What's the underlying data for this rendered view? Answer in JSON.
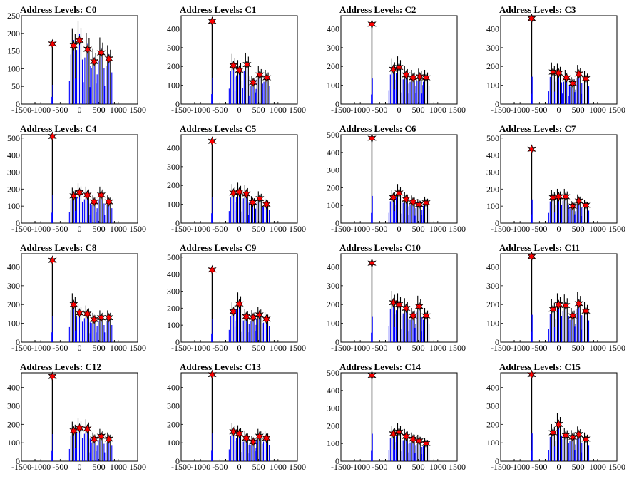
{
  "figure": {
    "colors": {
      "bar": "#0000ff",
      "raw": "#000000",
      "marker": "#ff0000",
      "marker_edge": "#000000"
    }
  },
  "chart_data": [
    {
      "title": "Address Levels: C0",
      "type": "bar",
      "xlim": [
        -1500,
        1500
      ],
      "ylim": [
        0,
        250
      ],
      "xticks": [
        -1500,
        -1000,
        -500,
        0,
        500,
        1000,
        1500
      ],
      "yticks": [
        0,
        50,
        100,
        150,
        200,
        250
      ],
      "centers": [
        -700,
        -150,
        0,
        210,
        380,
        560,
        760
      ],
      "peaks": [
        170,
        165,
        180,
        155,
        120,
        145,
        128
      ]
    },
    {
      "title": "Address Levels: C1",
      "type": "bar",
      "xlim": [
        -1500,
        1500
      ],
      "ylim": [
        0,
        470
      ],
      "xticks": [
        -1500,
        -1000,
        -500,
        0,
        500,
        1000,
        1500
      ],
      "yticks": [
        0,
        100,
        200,
        300,
        400
      ],
      "centers": [
        -700,
        -150,
        0,
        200,
        360,
        530,
        710
      ],
      "peaks": [
        440,
        205,
        180,
        210,
        115,
        155,
        140
      ]
    },
    {
      "title": "Address Levels: C2",
      "type": "bar",
      "xlim": [
        -1500,
        1500
      ],
      "ylim": [
        0,
        470
      ],
      "xticks": [
        -1500,
        -1000,
        -500,
        0,
        500,
        1000,
        1500
      ],
      "yticks": [
        0,
        100,
        200,
        300,
        400
      ],
      "centers": [
        -700,
        -150,
        0,
        180,
        360,
        540,
        700
      ],
      "peaks": [
        425,
        185,
        195,
        155,
        140,
        145,
        140
      ]
    },
    {
      "title": "Address Levels: C3",
      "type": "bar",
      "xlim": [
        -1500,
        1500
      ],
      "ylim": [
        0,
        470
      ],
      "xticks": [
        -1500,
        -1000,
        -500,
        0,
        500,
        1000,
        1500
      ],
      "yticks": [
        0,
        100,
        200,
        300,
        400
      ],
      "centers": [
        -700,
        -150,
        0,
        200,
        360,
        520,
        700
      ],
      "peaks": [
        455,
        170,
        165,
        140,
        110,
        160,
        135
      ]
    },
    {
      "title": "Address Levels: C4",
      "type": "bar",
      "xlim": [
        -1500,
        1500
      ],
      "ylim": [
        0,
        520
      ],
      "xticks": [
        -1500,
        -1000,
        -500,
        0,
        500,
        1000,
        1500
      ],
      "yticks": [
        0,
        100,
        200,
        300,
        400,
        500
      ],
      "centers": [
        -700,
        -150,
        0,
        200,
        380,
        560,
        760
      ],
      "peaks": [
        510,
        160,
        180,
        165,
        125,
        165,
        125
      ]
    },
    {
      "title": "Address Levels: C5",
      "type": "bar",
      "xlim": [
        -1500,
        1500
      ],
      "ylim": [
        0,
        470
      ],
      "xticks": [
        -1500,
        -1000,
        -500,
        0,
        500,
        1000,
        1500
      ],
      "yticks": [
        0,
        100,
        200,
        300,
        400
      ],
      "centers": [
        -700,
        -150,
        0,
        180,
        350,
        530,
        700
      ],
      "peaks": [
        435,
        160,
        165,
        155,
        110,
        130,
        100
      ]
    },
    {
      "title": "Address Levels: C6",
      "type": "bar",
      "xlim": [
        -1500,
        1500
      ],
      "ylim": [
        0,
        500
      ],
      "xticks": [
        -1500,
        -1000,
        -500,
        0,
        500,
        1000,
        1500
      ],
      "yticks": [
        0,
        100,
        200,
        300,
        400,
        500
      ],
      "centers": [
        -700,
        -150,
        0,
        180,
        360,
        520,
        700
      ],
      "peaks": [
        480,
        145,
        170,
        135,
        120,
        105,
        115
      ]
    },
    {
      "title": "Address Levels: C7",
      "type": "bar",
      "xlim": [
        -1500,
        1500
      ],
      "ylim": [
        0,
        520
      ],
      "xticks": [
        -1500,
        -1000,
        -500,
        0,
        500,
        1000,
        1500
      ],
      "yticks": [
        0,
        100,
        200,
        300,
        400,
        500
      ],
      "centers": [
        -700,
        -150,
        0,
        180,
        360,
        520,
        700
      ],
      "peaks": [
        435,
        150,
        155,
        155,
        100,
        130,
        105
      ]
    },
    {
      "title": "Address Levels: C8",
      "type": "bar",
      "xlim": [
        -1500,
        1500
      ],
      "ylim": [
        0,
        470
      ],
      "xticks": [
        -1500,
        -1000,
        -500,
        0,
        500,
        1000,
        1500
      ],
      "yticks": [
        0,
        100,
        200,
        300,
        400
      ],
      "centers": [
        -700,
        -150,
        0,
        200,
        380,
        560,
        760
      ],
      "peaks": [
        435,
        200,
        155,
        150,
        120,
        130,
        130
      ]
    },
    {
      "title": "Address Levels: C9",
      "type": "bar",
      "xlim": [
        -1500,
        1500
      ],
      "ylim": [
        0,
        520
      ],
      "xticks": [
        -1500,
        -1000,
        -500,
        0,
        500,
        1000,
        1500
      ],
      "yticks": [
        0,
        100,
        200,
        300,
        400,
        500
      ],
      "centers": [
        -700,
        -150,
        0,
        180,
        360,
        520,
        700
      ],
      "peaks": [
        425,
        180,
        225,
        150,
        145,
        160,
        135
      ]
    },
    {
      "title": "Address Levels: C10",
      "type": "bar",
      "xlim": [
        -1500,
        1500
      ],
      "ylim": [
        0,
        470
      ],
      "xticks": [
        -1500,
        -1000,
        -500,
        0,
        500,
        1000,
        1500
      ],
      "yticks": [
        0,
        100,
        200,
        300,
        400
      ],
      "centers": [
        -700,
        -150,
        0,
        180,
        360,
        520,
        700
      ],
      "peaks": [
        420,
        210,
        200,
        180,
        140,
        190,
        140
      ]
    },
    {
      "title": "Address Levels: C11",
      "type": "bar",
      "xlim": [
        -1500,
        1500
      ],
      "ylim": [
        0,
        470
      ],
      "xticks": [
        -1500,
        -1000,
        -500,
        0,
        500,
        1000,
        1500
      ],
      "yticks": [
        0,
        100,
        200,
        300,
        400
      ],
      "centers": [
        -700,
        -150,
        0,
        180,
        360,
        520,
        700
      ],
      "peaks": [
        455,
        175,
        200,
        195,
        140,
        205,
        165
      ]
    },
    {
      "title": "Address Levels: C12",
      "type": "bar",
      "xlim": [
        -1500,
        1500
      ],
      "ylim": [
        0,
        480
      ],
      "xticks": [
        -1500,
        -1000,
        -500,
        0,
        500,
        1000,
        1500
      ],
      "yticks": [
        0,
        100,
        200,
        300,
        400
      ],
      "centers": [
        -700,
        -150,
        0,
        200,
        380,
        560,
        760
      ],
      "peaks": [
        460,
        165,
        180,
        175,
        120,
        135,
        120
      ]
    },
    {
      "title": "Address Levels: C13",
      "type": "bar",
      "xlim": [
        -1500,
        1500
      ],
      "ylim": [
        0,
        480
      ],
      "xticks": [
        -1500,
        -1000,
        -500,
        0,
        500,
        1000,
        1500
      ],
      "yticks": [
        0,
        100,
        200,
        300,
        400
      ],
      "centers": [
        -700,
        -150,
        0,
        180,
        360,
        520,
        700
      ],
      "peaks": [
        470,
        160,
        150,
        125,
        105,
        135,
        125
      ]
    },
    {
      "title": "Address Levels: C14",
      "type": "bar",
      "xlim": [
        -1500,
        1500
      ],
      "ylim": [
        0,
        500
      ],
      "xticks": [
        -1500,
        -1000,
        -500,
        0,
        500,
        1000,
        1500
      ],
      "yticks": [
        0,
        100,
        200,
        300,
        400,
        500
      ],
      "centers": [
        -700,
        -150,
        0,
        180,
        360,
        520,
        700
      ],
      "peaks": [
        485,
        155,
        165,
        140,
        125,
        115,
        100
      ]
    },
    {
      "title": "Address Levels: C15",
      "type": "bar",
      "xlim": [
        -1500,
        1500
      ],
      "ylim": [
        0,
        480
      ],
      "xticks": [
        -1500,
        -1000,
        -500,
        0,
        500,
        1000,
        1500
      ],
      "yticks": [
        0,
        100,
        200,
        300,
        400
      ],
      "centers": [
        -700,
        -150,
        0,
        180,
        360,
        520,
        700
      ],
      "peaks": [
        470,
        155,
        200,
        140,
        130,
        145,
        120
      ]
    }
  ]
}
